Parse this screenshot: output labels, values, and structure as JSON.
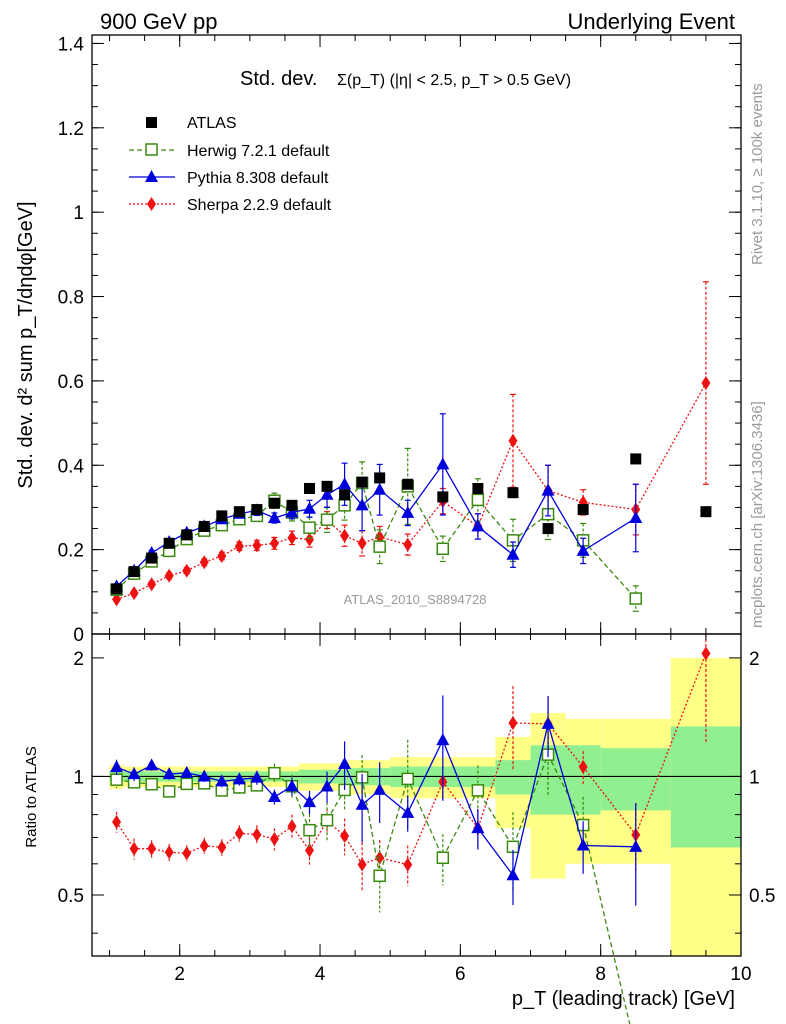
{
  "header": {
    "left": "900 GeV pp",
    "right": "Underlying Event"
  },
  "side_text": {
    "rivet": "Rivet 3.1.10, ≥ 100k events",
    "mcplots": "mcplots.cern.ch [arXiv:1306.3436]"
  },
  "watermark": "ATLAS_2010_S8894728",
  "colors": {
    "atlas": "#000000",
    "herwig": "#3a8a10",
    "pythia": "#0000dd",
    "sherpa": "#ee1111",
    "band_inner": "#90f090",
    "band_outer": "#ffff88"
  },
  "legend": [
    {
      "key": "atlas",
      "label": "ATLAS",
      "marker": "filled-square"
    },
    {
      "key": "herwig",
      "label": "Herwig 7.2.1 default",
      "marker": "open-square"
    },
    {
      "key": "pythia",
      "label": "Pythia 8.308 default",
      "marker": "triangle"
    },
    {
      "key": "sherpa",
      "label": "Sherpa 2.2.9 default",
      "marker": "diamond"
    }
  ],
  "chart_data": {
    "type": "scatter",
    "title_main": "Std. dev.",
    "title_sub": "Σ(p_T) (|η| < 2.5, p_T > 0.5 GeV)",
    "main_panel": {
      "ylabel": "Std. dev. d² sum p_T/dηdφ[GeV]",
      "ylim": [
        0,
        1.42
      ],
      "y_ticks": [
        "0",
        "0.2",
        "0.4",
        "0.6",
        "0.8",
        "1",
        "1.2",
        "1.4"
      ],
      "y_tick_values": [
        0,
        0.2,
        0.4,
        0.6,
        0.8,
        1.0,
        1.2,
        1.4
      ]
    },
    "ratio_panel": {
      "ylabel": "Ratio to ATLAS",
      "ylim": [
        0.35,
        2.3
      ],
      "y_ticks": [
        "0.5",
        "1",
        "2"
      ],
      "y_tick_values": [
        0.5,
        1,
        2
      ]
    },
    "xlabel": "p_T (leading track) [GeV]",
    "xlim": [
      0.75,
      10.0
    ],
    "x_ticks": [
      "2",
      "4",
      "6",
      "8",
      "10"
    ],
    "x_tick_values": [
      2,
      4,
      6,
      8,
      10
    ],
    "x": [
      1.1,
      1.35,
      1.6,
      1.85,
      2.1,
      2.35,
      2.6,
      2.85,
      3.1,
      3.35,
      3.6,
      3.85,
      4.1,
      4.35,
      4.6,
      4.85,
      5.25,
      5.75,
      6.25,
      6.75,
      7.25,
      7.75,
      8.5,
      9.5
    ],
    "series": [
      {
        "name": "ATLAS",
        "key": "atlas",
        "values": [
          0.107,
          0.148,
          0.18,
          0.215,
          0.235,
          0.255,
          0.28,
          0.29,
          0.295,
          0.31,
          0.305,
          0.345,
          0.35,
          0.33,
          0.36,
          0.37,
          0.355,
          0.325,
          0.345,
          0.335,
          0.25,
          0.295,
          0.415,
          0.29
        ]
      },
      {
        "name": "Herwig 7.2.1 default",
        "key": "herwig",
        "values": [
          0.105,
          0.143,
          0.172,
          0.197,
          0.225,
          0.245,
          0.258,
          0.272,
          0.28,
          0.316,
          0.288,
          0.252,
          0.271,
          0.305,
          0.358,
          0.207,
          0.35,
          0.202,
          0.318,
          0.222,
          0.284,
          0.222,
          0.084,
          null
        ],
        "errors": [
          0.005,
          0.006,
          0.006,
          0.007,
          0.007,
          0.008,
          0.009,
          0.01,
          0.012,
          0.018,
          0.02,
          0.025,
          0.03,
          0.035,
          0.05,
          0.04,
          0.09,
          0.03,
          0.05,
          0.05,
          0.06,
          0.04,
          0.03,
          null
        ]
      },
      {
        "name": "Pythia 8.308 default",
        "key": "pythia",
        "values": [
          0.113,
          0.15,
          0.192,
          0.218,
          0.24,
          0.255,
          0.272,
          0.285,
          0.293,
          0.275,
          0.288,
          0.297,
          0.33,
          0.355,
          0.305,
          0.342,
          0.287,
          0.402,
          0.255,
          0.188,
          0.34,
          0.197,
          0.275,
          null
        ],
        "errors": [
          0.005,
          0.006,
          0.006,
          0.007,
          0.007,
          0.008,
          0.009,
          0.01,
          0.012,
          0.012,
          0.015,
          0.02,
          0.03,
          0.05,
          0.06,
          0.06,
          0.03,
          0.12,
          0.03,
          0.03,
          0.06,
          0.03,
          0.08,
          null
        ]
      },
      {
        "name": "Sherpa 2.2.9 default",
        "key": "sherpa",
        "values": [
          0.082,
          0.097,
          0.118,
          0.138,
          0.15,
          0.17,
          0.185,
          0.208,
          0.21,
          0.215,
          0.228,
          0.224,
          0.27,
          0.233,
          0.215,
          0.23,
          0.212,
          0.315,
          0.255,
          0.458,
          0.34,
          0.312,
          0.295,
          0.595
        ],
        "errors": [
          0.005,
          0.006,
          0.006,
          0.007,
          0.007,
          0.008,
          0.009,
          0.01,
          0.012,
          0.014,
          0.016,
          0.018,
          0.02,
          0.025,
          0.03,
          0.025,
          0.025,
          0.03,
          0.03,
          0.11,
          0.06,
          0.03,
          0.06,
          0.24
        ]
      }
    ],
    "ratio_band": [
      {
        "x0": 1.0,
        "x1": 1.2,
        "inner": 0.03,
        "outer": 0.07
      },
      {
        "x0": 1.2,
        "x1": 3.7,
        "inner": 0.03,
        "outer": 0.06
      },
      {
        "x0": 3.7,
        "x1": 4.4,
        "inner": 0.04,
        "outer": 0.08
      },
      {
        "x0": 4.4,
        "x1": 5.0,
        "inner": 0.05,
        "outer": 0.1
      },
      {
        "x0": 5.0,
        "x1": 6.5,
        "inner": 0.06,
        "outer": 0.12
      },
      {
        "x0": 6.5,
        "x1": 7.0,
        "inner": 0.1,
        "outer": 0.26
      },
      {
        "x0": 7.0,
        "x1": 7.5,
        "inner": 0.2,
        "outer": 0.45
      },
      {
        "x0": 7.5,
        "x1": 8.0,
        "inner": 0.2,
        "outer": 0.4
      },
      {
        "x0": 8.0,
        "x1": 9.0,
        "inner": 0.18,
        "outer": 0.4
      },
      {
        "x0": 9.0,
        "x1": 10.0,
        "inner": 0.34,
        "outer": 1.0
      }
    ],
    "grid": false,
    "legend_position": "top-left"
  }
}
